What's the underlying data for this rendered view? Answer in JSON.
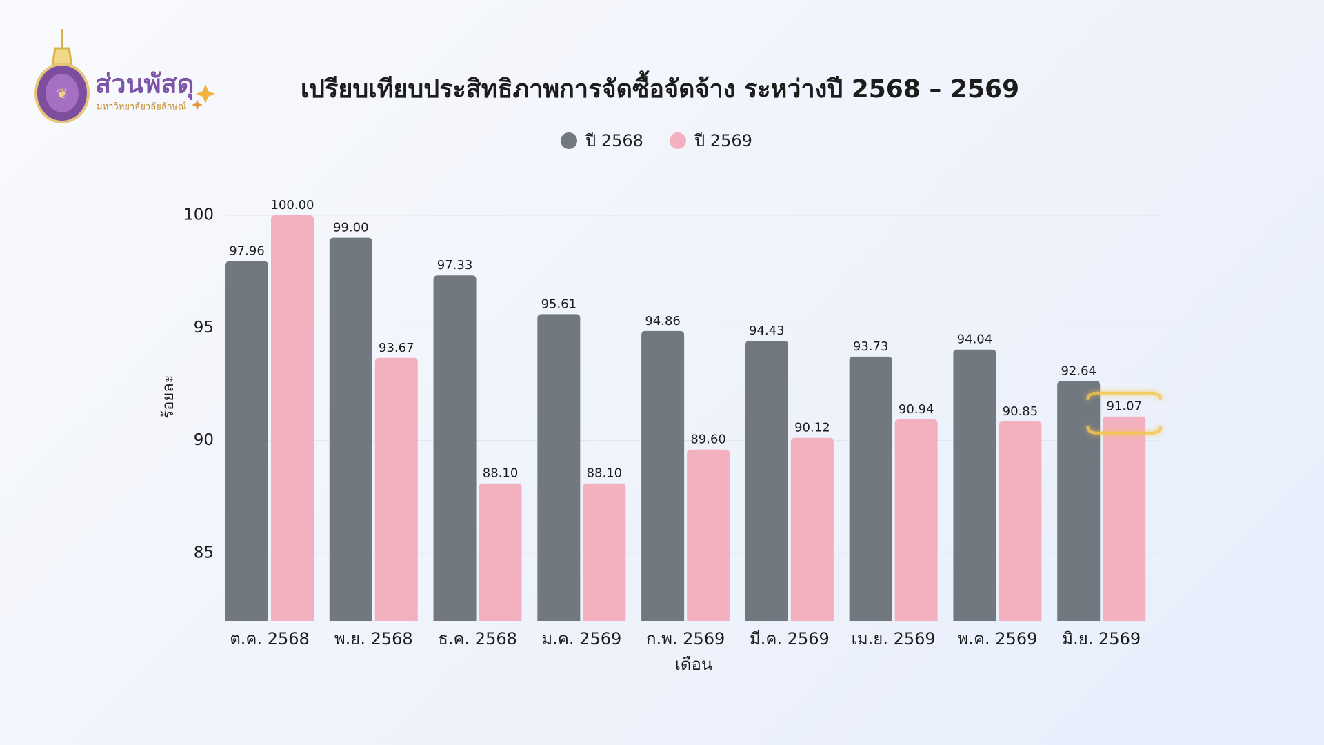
{
  "logo": {
    "title": "ส่วนพัสดุ",
    "subtitle": "มหาวิทยาลัยวลัยลักษณ์"
  },
  "chart_data": {
    "type": "bar",
    "title": "เปรียบเทียบประสิทธิภาพการจัดซื้อจัดจ้าง ระหว่างปี 2568 – 2569",
    "x_label": "เดือน",
    "y_label": "ร้อยละ",
    "categories": [
      "ต.ค. 2568",
      "พ.ย. 2568",
      "ธ.ค. 2568",
      "ม.ค. 2569",
      "ก.พ. 2569",
      "มี.ค. 2569",
      "เม.ย. 2569",
      "พ.ค. 2569",
      "มิ.ย. 2569"
    ],
    "series": [
      {
        "name": "ปี 2568",
        "color": "#727880",
        "values": [
          97.96,
          99.0,
          97.33,
          95.61,
          94.86,
          94.43,
          93.73,
          94.04,
          92.64
        ],
        "value_labels": [
          "97.96",
          "99.00",
          "97.33",
          "95.61",
          "94.86",
          "94.43",
          "93.73",
          "94.04",
          "92.64"
        ]
      },
      {
        "name": "ปี 2569",
        "color": "#f3b1c0",
        "values": [
          100,
          93.67,
          88.1,
          88.1,
          89.6,
          90.12,
          90.94,
          90.85,
          91.07
        ],
        "value_labels": [
          "100.00",
          "93.67",
          "88.10",
          "88.10",
          "89.60",
          "90.12",
          "90.94",
          "90.85",
          "91.07"
        ]
      }
    ],
    "ylim": [
      82,
      100
    ],
    "yticks": [
      85,
      90,
      95,
      100
    ],
    "grid": true,
    "legend": "top"
  }
}
